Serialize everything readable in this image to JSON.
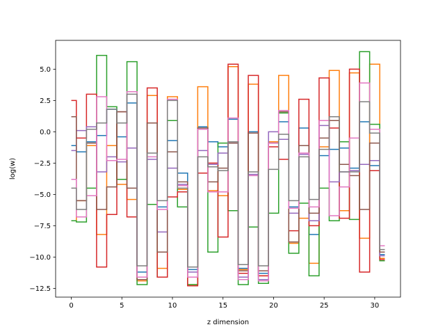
{
  "chart_data": {
    "type": "line",
    "style": "steps-mid",
    "title": "",
    "xlabel": "z dimension",
    "ylabel": "log(w)",
    "xlim": [
      -1.55,
      32.55
    ],
    "ylim": [
      -13.2,
      7.3
    ],
    "xticks": [
      0,
      5,
      10,
      15,
      20,
      25,
      30
    ],
    "yticks": [
      -12.5,
      -10.0,
      -7.5,
      -5.0,
      -2.5,
      0.0,
      2.5,
      5.0
    ],
    "ytick_labels": [
      "−12.5",
      "−10.0",
      "−7.5",
      "−5.0",
      "−2.5",
      "0.0",
      "2.5",
      "5.0"
    ],
    "grid": false,
    "legend": "none",
    "x": [
      0,
      1,
      2,
      3,
      4,
      5,
      6,
      7,
      8,
      9,
      10,
      11,
      12,
      13,
      14,
      15,
      16,
      17,
      18,
      19,
      20,
      21,
      22,
      23,
      24,
      25,
      26,
      27,
      28,
      29,
      30,
      31
    ],
    "series": [
      {
        "color": "#1f77b4",
        "values": [
          -1.1,
          -1.6,
          -0.8,
          -0.3,
          1.8,
          -0.4,
          2.3,
          -11.2,
          0.7,
          -6.0,
          -0.7,
          -3.3,
          -11.0,
          0.4,
          -0.8,
          -1.2,
          1.0,
          -10.9,
          0.0,
          -11.3,
          -0.9,
          0.8,
          -6.0,
          0.3,
          -8.2,
          -1.9,
          -1.4,
          -1.3,
          -2.9,
          0.8,
          -2.7,
          -9.8
        ]
      },
      {
        "color": "#ff7f0e",
        "values": [
          -7.1,
          -5.5,
          -1.1,
          -8.2,
          -1.1,
          -4.2,
          -5.4,
          -11.9,
          2.9,
          -10.9,
          2.8,
          -4.6,
          -12.2,
          3.6,
          -4.7,
          -5.1,
          5.2,
          -11.0,
          3.8,
          -11.5,
          -0.8,
          4.5,
          -8.9,
          -6.9,
          -10.5,
          -1.2,
          4.9,
          -6.3,
          4.7,
          -8.5,
          5.4,
          -10.1
        ]
      },
      {
        "color": "#2ca02c",
        "values": [
          -7.1,
          -7.2,
          -4.5,
          6.1,
          2.0,
          -3.8,
          5.6,
          -12.2,
          -5.8,
          -11.6,
          0.9,
          -6.0,
          -12.2,
          -3.3,
          -9.6,
          -0.9,
          -6.3,
          -12.2,
          -7.6,
          -12.1,
          -6.5,
          1.5,
          -9.7,
          -5.7,
          -11.5,
          -4.5,
          -7.1,
          -0.8,
          -7.0,
          6.4,
          0.6,
          -10.3
        ]
      },
      {
        "color": "#d62728",
        "values": [
          2.5,
          -0.5,
          3.0,
          -10.8,
          -6.6,
          1.6,
          -6.8,
          -11.6,
          3.5,
          -11.6,
          -5.2,
          -4.8,
          -12.3,
          -3.3,
          -2.5,
          -8.4,
          5.4,
          -11.3,
          4.5,
          -11.5,
          -1.2,
          -2.2,
          -7.9,
          2.6,
          -7.5,
          4.3,
          0.3,
          -6.9,
          5.0,
          -11.2,
          -3.1,
          -10.2
        ]
      },
      {
        "color": "#9467bd",
        "values": [
          -1.5,
          0.1,
          0.4,
          -3.2,
          -2.0,
          -2.4,
          -1.3,
          -11.6,
          -2.2,
          -8.0,
          -2.9,
          -4.2,
          -11.2,
          -1.5,
          -2.6,
          -1.7,
          -0.9,
          -11.6,
          -3.4,
          -11.8,
          0.0,
          -0.6,
          -6.5,
          -1.8,
          -7.1,
          0.5,
          -4.0,
          -3.2,
          -3.1,
          -2.6,
          -2.3,
          -9.9
        ]
      },
      {
        "color": "#8c564b",
        "values": [
          1.2,
          -5.5,
          -0.9,
          -6.2,
          -4.4,
          1.6,
          -4.5,
          -11.8,
          0.7,
          -9.6,
          -1.6,
          -4.0,
          -11.6,
          0.3,
          -4.0,
          -2.9,
          -0.9,
          -11.1,
          -0.1,
          -11.1,
          -0.9,
          1.6,
          -8.8,
          -1.1,
          -6.5,
          -0.5,
          0.9,
          -2.6,
          -3.5,
          -6.2,
          -0.9,
          -9.6
        ]
      },
      {
        "color": "#e377c2",
        "values": [
          -3.8,
          -6.8,
          -5.1,
          2.8,
          -2.3,
          -2.2,
          3.2,
          -11.6,
          -2.0,
          -6.2,
          2.6,
          -4.3,
          -11.6,
          0.2,
          -4.8,
          -4.8,
          1.1,
          -11.8,
          -3.5,
          -11.9,
          -0.9,
          1.7,
          -6.1,
          -1.7,
          -6.0,
          0.9,
          -6.7,
          -4.4,
          -0.5,
          3.9,
          0.2,
          -9.1
        ]
      },
      {
        "color": "#7f7f7f",
        "values": [
          -4.5,
          -6.2,
          0.2,
          0.7,
          1.8,
          0.7,
          3.0,
          -10.7,
          -1.7,
          -5.5,
          2.5,
          -4.5,
          -10.8,
          -2.0,
          -2.8,
          -3.1,
          -0.8,
          -10.6,
          -3.2,
          -10.7,
          -3.0,
          -0.2,
          -5.5,
          -2.0,
          -5.4,
          -1.4,
          1.2,
          -3.2,
          -3.2,
          2.4,
          -0.1,
          -9.4
        ]
      }
    ]
  }
}
